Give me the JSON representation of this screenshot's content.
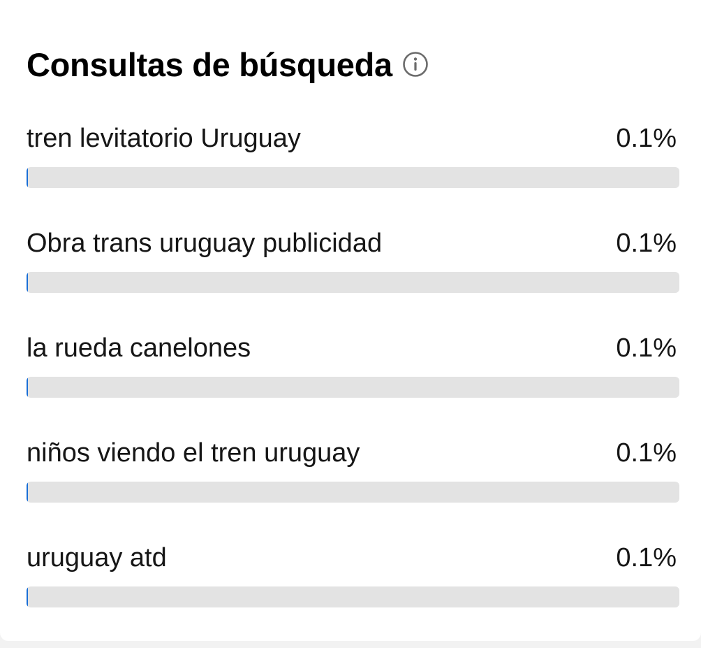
{
  "panel": {
    "title": "Consultas de búsqueda",
    "info_icon": "info-circle-icon",
    "accent_color": "#1a6fd6",
    "track_color": "#e3e3e3"
  },
  "queries": [
    {
      "label": "tren levitatorio Uruguay",
      "value": "0.1%",
      "percent": 0.1
    },
    {
      "label": "Obra trans uruguay publicidad",
      "value": "0.1%",
      "percent": 0.1
    },
    {
      "label": "la rueda canelones",
      "value": "0.1%",
      "percent": 0.1
    },
    {
      "label": "niños viendo el tren uruguay",
      "value": "0.1%",
      "percent": 0.1
    },
    {
      "label": "uruguay atd",
      "value": "0.1%",
      "percent": 0.1
    }
  ]
}
